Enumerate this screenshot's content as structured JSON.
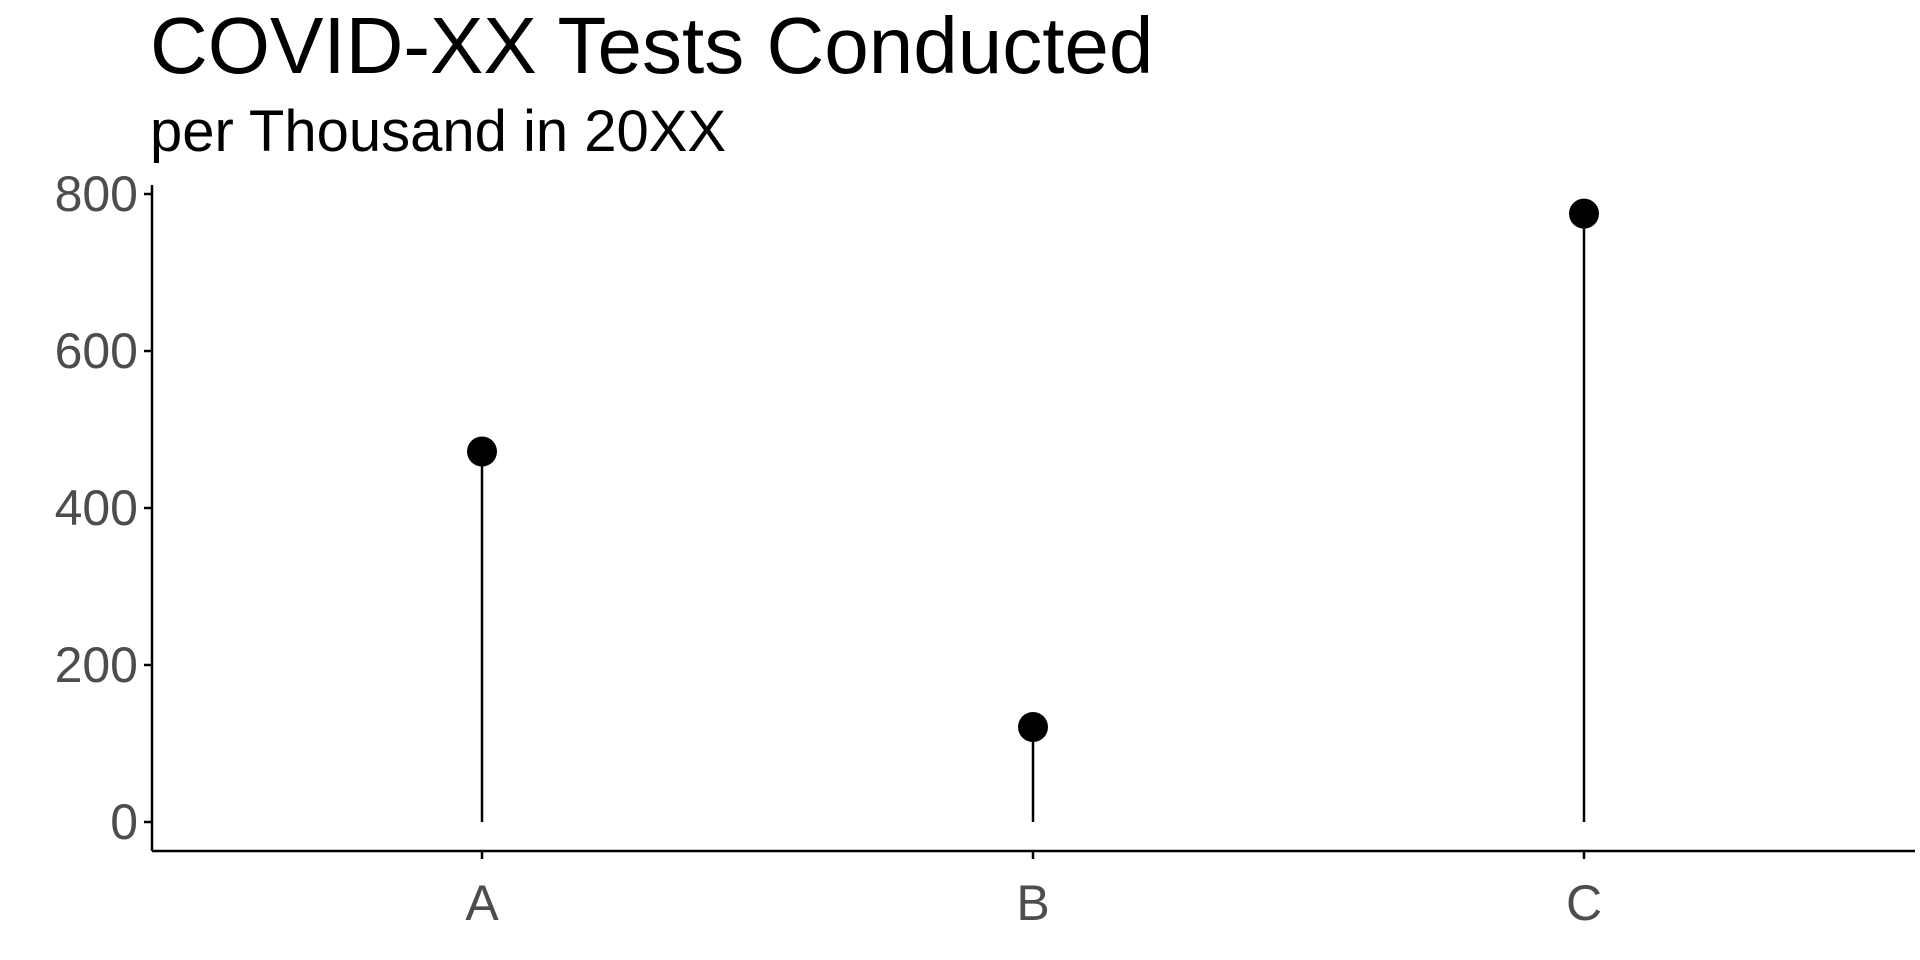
{
  "chart_data": {
    "type": "lollipop",
    "title": "COVID-XX Tests Conducted",
    "subtitle": "per Thousand in 20XX",
    "xlabel": "",
    "ylabel": "",
    "categories": [
      "A",
      "B",
      "C"
    ],
    "values": [
      472,
      121,
      775
    ],
    "ylim": [
      0,
      800
    ],
    "yticks": [
      0,
      200,
      400,
      600,
      800
    ],
    "grid": false,
    "legend": "none",
    "colors": {
      "marker": "#000000",
      "axis": "#000000",
      "tick_text": "#4d4d4d"
    }
  }
}
